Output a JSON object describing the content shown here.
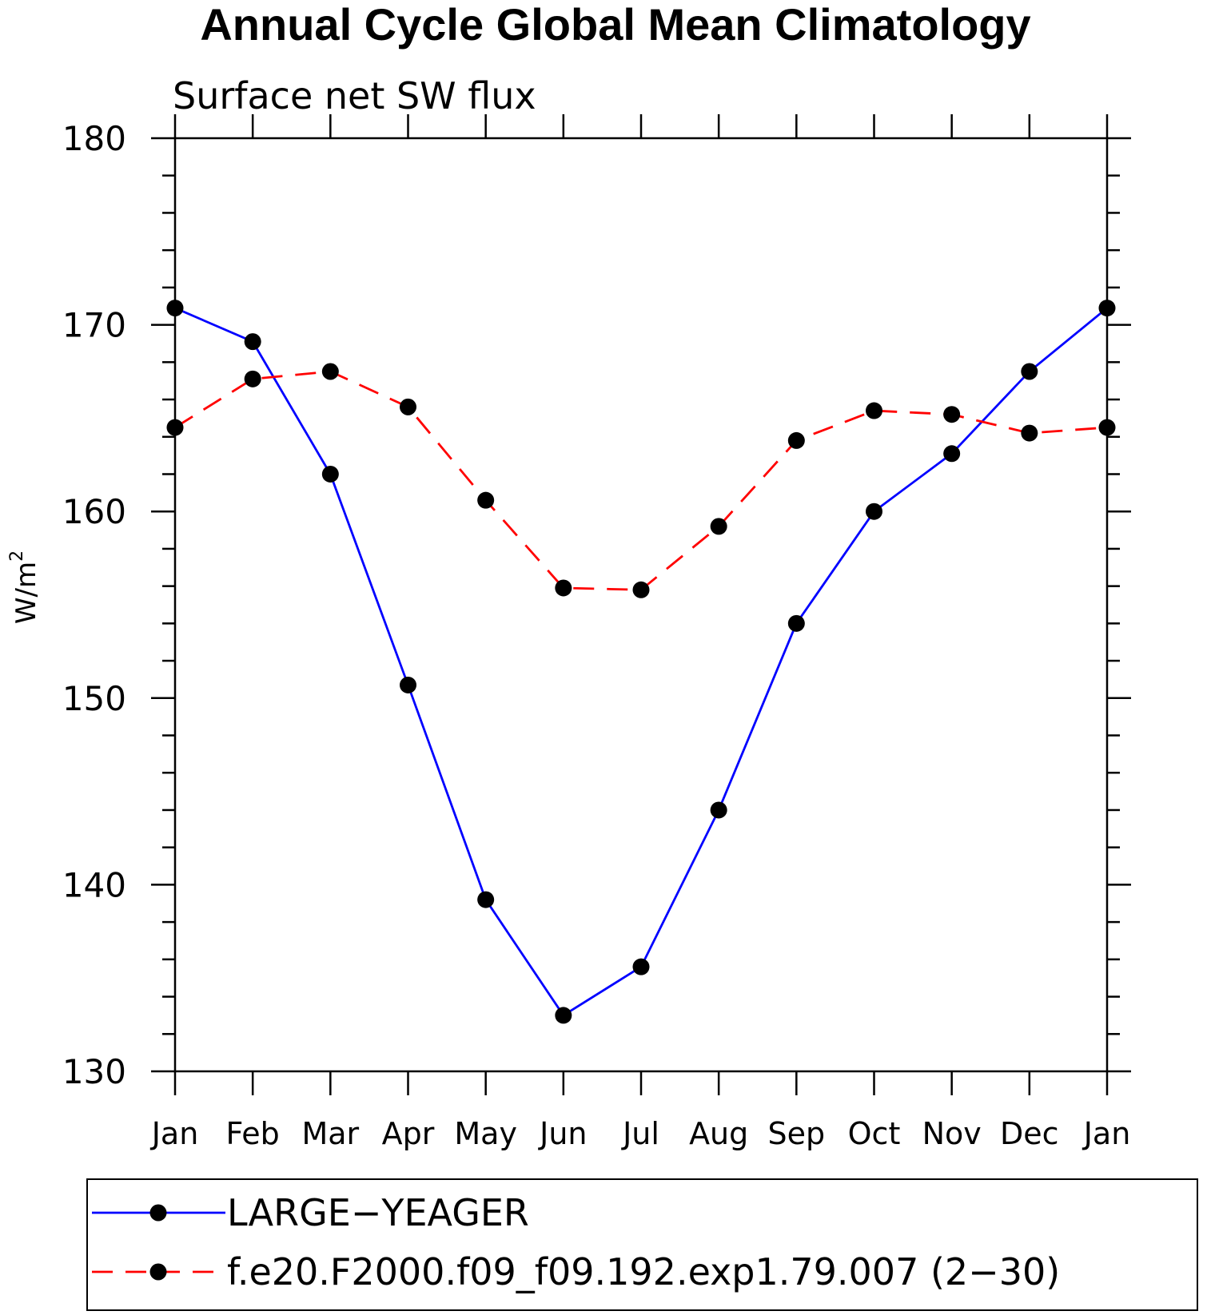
{
  "chart_data": {
    "type": "line",
    "title": "Annual Cycle Global Mean Climatology",
    "subtitle": "Surface net SW flux",
    "ylabel": "W/m",
    "ylabel_superscript": "2",
    "xlabel": "",
    "ylim": [
      130,
      180
    ],
    "yticks": [
      "180",
      "170",
      "160",
      "150",
      "140",
      "130"
    ],
    "categories": [
      "Jan",
      "Feb",
      "Mar",
      "Apr",
      "May",
      "Jun",
      "Jul",
      "Aug",
      "Sep",
      "Oct",
      "Nov",
      "Dec",
      "Jan"
    ],
    "series": [
      {
        "name": "LARGE−YEAGER",
        "color": "#0000ff",
        "dash": "solid",
        "marker": "filled-circle",
        "values": [
          170.9,
          169.1,
          162.0,
          150.7,
          139.2,
          133.0,
          135.6,
          144.0,
          154.0,
          160.0,
          163.1,
          167.5,
          170.9
        ]
      },
      {
        "name": "f.e20.F2000.f09_f09.192.exp1.79.007 (2−30)",
        "color": "#ff0000",
        "dash": "dashed",
        "marker": "filled-circle",
        "values": [
          164.5,
          167.1,
          167.5,
          165.6,
          160.6,
          155.9,
          155.8,
          159.2,
          163.8,
          165.4,
          165.2,
          164.2,
          164.5
        ]
      }
    ],
    "legend_position": "bottom",
    "grid": false
  }
}
